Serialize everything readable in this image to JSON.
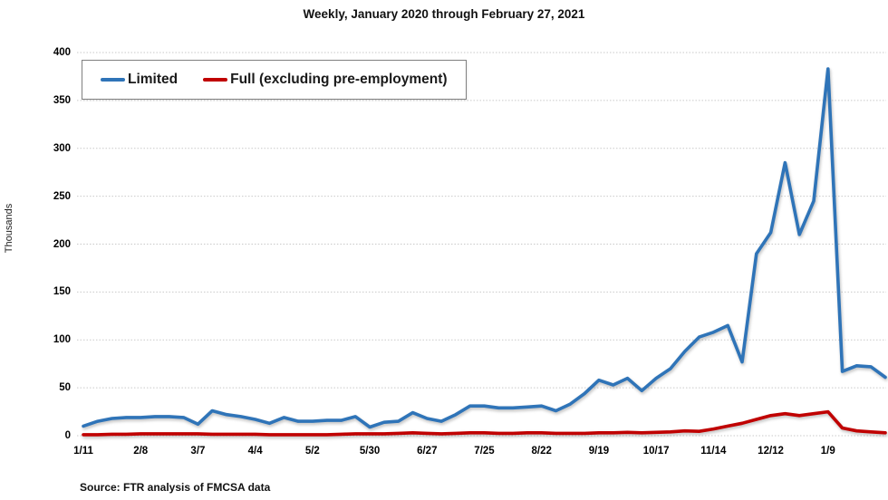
{
  "title": "Weekly, January 2020 through February 27, 2021",
  "source_note": "Source: FTR analysis of FMCSA data",
  "y_axis": {
    "label": "Thousands",
    "ticks": [
      0,
      50,
      100,
      150,
      200,
      250,
      300,
      350,
      400
    ]
  },
  "legend": [
    {
      "label": "Limited",
      "color": "#2F74B8"
    },
    {
      "label": "Full (excluding pre-employment)",
      "color": "#C00000"
    }
  ],
  "chart_data": {
    "type": "line",
    "title": "Weekly, January 2020 through February 27, 2021",
    "ylabel": "Thousands",
    "xlabel": "",
    "ylim": [
      0,
      400
    ],
    "grid": true,
    "legend_position": "top-left",
    "x_tick_labels": [
      "1/11",
      "2/8",
      "3/7",
      "4/4",
      "5/2",
      "5/30",
      "6/27",
      "7/25",
      "8/22",
      "9/19",
      "10/17",
      "11/14",
      "12/12",
      "1/9"
    ],
    "x_tick_every": 4,
    "series": [
      {
        "name": "Limited",
        "color": "#2F74B8",
        "values": [
          10,
          15,
          18,
          19,
          19,
          20,
          20,
          19,
          12,
          26,
          22,
          20,
          17,
          13,
          19,
          15,
          15,
          16,
          16,
          20,
          9,
          14,
          15,
          24,
          18,
          15,
          22,
          31,
          31,
          29,
          29,
          30,
          31,
          26,
          33,
          44,
          58,
          53,
          60,
          47,
          60,
          70,
          88,
          103,
          108,
          115,
          77,
          190,
          212,
          285,
          210,
          245,
          383,
          67,
          73,
          72,
          61
        ]
      },
      {
        "name": "Full (excluding pre-employment)",
        "color": "#C00000",
        "values": [
          1,
          1,
          1.5,
          1.5,
          2,
          2,
          2,
          2,
          2,
          1.5,
          1.5,
          1.5,
          1.5,
          1,
          1,
          1,
          1,
          1,
          1.5,
          2,
          2,
          2,
          2.5,
          3,
          2.5,
          2,
          2.5,
          3,
          3,
          2.5,
          2.5,
          3,
          3,
          2.5,
          2.5,
          2.5,
          3,
          3,
          3.5,
          3,
          3.5,
          4,
          5,
          4.5,
          7,
          10,
          13,
          17,
          21,
          23,
          21,
          23,
          25,
          8,
          5,
          4,
          3
        ]
      }
    ]
  }
}
